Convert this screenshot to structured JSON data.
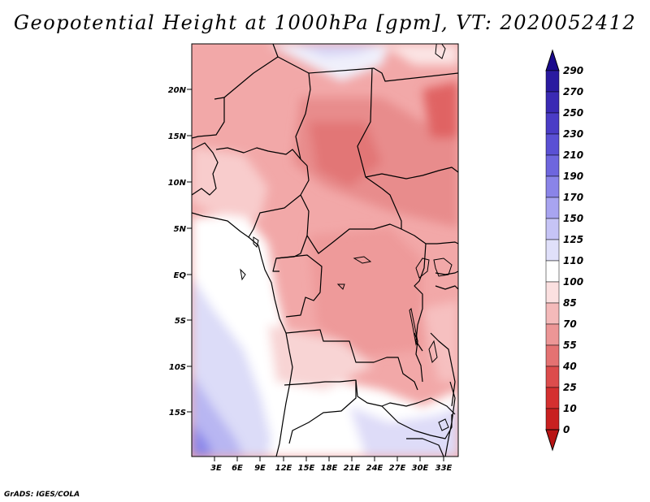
{
  "title": "Geopotential Height at 1000hPa [gpm], VT: 2020052412",
  "footer": "GrADS: IGES/COLA",
  "map": {
    "lat_labels": [
      "20N",
      "15N",
      "10N",
      "5N",
      "EQ",
      "5S",
      "10S",
      "15S"
    ],
    "lon_labels": [
      "3E",
      "6E",
      "9E",
      "12E",
      "15E",
      "18E",
      "21E",
      "24E",
      "27E",
      "30E",
      "33E"
    ]
  },
  "colorbar": {
    "labels": [
      "290",
      "270",
      "250",
      "230",
      "210",
      "190",
      "170",
      "150",
      "125",
      "110",
      "100",
      "85",
      "70",
      "55",
      "40",
      "25",
      "10",
      "0"
    ],
    "colors": {
      "top_arrow": "#1a0a8c",
      "bottom_arrow": "#b81414",
      "segments": [
        "#2a1aa0",
        "#3a2ab4",
        "#4a3cc6",
        "#5a50d4",
        "#6e66de",
        "#8a84e8",
        "#a8a4f0",
        "#c6c4f6",
        "#e0e0fa",
        "#ffffff",
        "#fbe0e0",
        "#f4baba",
        "#ec9696",
        "#e47272",
        "#dc4c4c",
        "#d43030",
        "#c82020"
      ]
    }
  }
}
